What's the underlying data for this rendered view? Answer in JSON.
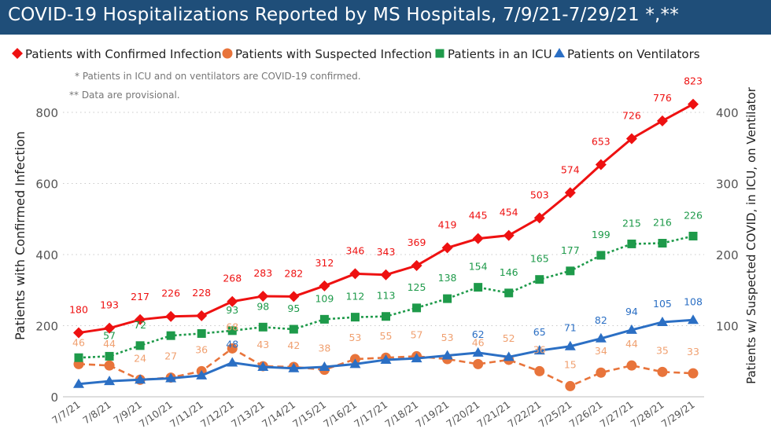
{
  "chart_data": {
    "type": "line",
    "title": "COVID-19 Hospitalizations Reported by MS Hospitals, 7/9/21-7/29/21 *,**",
    "notes": [
      "* Patients in ICU and on ventilators are COVID-19 confirmed.",
      "** Data are provisional."
    ],
    "ylabel_left": "Patients with Confirmed Infection",
    "ylabel_right": "Patients w/ Suspected COVID, in ICU, on Ventilator",
    "ylim_left": [
      0,
      800
    ],
    "yticks_left": [
      0,
      200,
      400,
      600,
      800
    ],
    "ylim_right": [
      0,
      400
    ],
    "yticks_right": [
      100,
      200,
      300,
      400
    ],
    "grid": "horizontal dotted",
    "legend_position": "top",
    "categories": [
      "7/7/21",
      "7/8/21",
      "7/9/21",
      "7/10/21",
      "7/11/21",
      "7/12/21",
      "7/13/21",
      "7/14/21",
      "7/15/21",
      "7/16/21",
      "7/17/21",
      "7/18/21",
      "7/19/21",
      "7/20/21",
      "7/21/21",
      "7/22/21",
      "7/25/21",
      "7/26/21",
      "7/27/21",
      "7/28/21",
      "7/29/21"
    ],
    "series": [
      {
        "name": "Patients with Confirmed Infection",
        "axis": "left",
        "color": "#ee1111",
        "marker": "diamond",
        "line": "solid",
        "values": [
          180,
          193,
          217,
          226,
          228,
          268,
          283,
          282,
          312,
          346,
          343,
          369,
          419,
          445,
          454,
          503,
          574,
          653,
          726,
          776,
          823
        ]
      },
      {
        "name": "Patients with Suspected Infection",
        "axis": "right",
        "color": "#e8743b",
        "marker": "circle",
        "line": "dashed",
        "values": [
          46,
          44,
          24,
          27,
          36,
          68,
          43,
          42,
          38,
          53,
          55,
          57,
          53,
          46,
          52,
          36,
          15,
          34,
          44,
          35,
          33
        ]
      },
      {
        "name": "Patients in an ICU",
        "axis": "right",
        "color": "#1e9a4a",
        "marker": "square",
        "line": "dotted",
        "values": [
          55,
          57,
          72,
          86,
          89,
          93,
          98,
          95,
          109,
          112,
          113,
          125,
          138,
          154,
          146,
          165,
          177,
          199,
          215,
          216,
          226
        ]
      },
      {
        "name": "Patients on Ventilators",
        "axis": "right",
        "color": "#2b6fc4",
        "marker": "triangle",
        "line": "solid",
        "values": [
          18,
          22,
          24,
          26,
          30,
          48,
          42,
          40,
          42,
          46,
          52,
          54,
          58,
          62,
          56,
          65,
          71,
          82,
          94,
          105,
          108
        ]
      }
    ],
    "value_labels": {
      "Patients with Confirmed Infection": [
        "180",
        "193",
        "217",
        "226",
        "228",
        "268",
        "283",
        "282",
        "312",
        "346",
        "343",
        "369",
        "419",
        "445",
        "454",
        "503",
        "574",
        "653",
        "726",
        "776",
        "823"
      ],
      "Patients with Suspected Infection": [
        "46",
        "44",
        "24",
        "27",
        "36",
        "68",
        "43",
        "42",
        "38",
        "53",
        "55",
        "57",
        "53",
        "46",
        "52",
        "36",
        "15",
        "34",
        "44",
        "35",
        "33"
      ],
      "Patients in an ICU": [
        "",
        "57",
        "72",
        "",
        "",
        "93",
        "98",
        "95",
        "109",
        "112",
        "113",
        "125",
        "138",
        "154",
        "146",
        "165",
        "177",
        "199",
        "215",
        "216",
        "226"
      ],
      "Patients on Ventilators": [
        "",
        "",
        "",
        "",
        "",
        "48",
        "",
        "",
        "",
        "",
        "",
        "",
        "",
        "62",
        "",
        "65",
        "71",
        "82",
        "94",
        "105",
        "108"
      ]
    }
  }
}
